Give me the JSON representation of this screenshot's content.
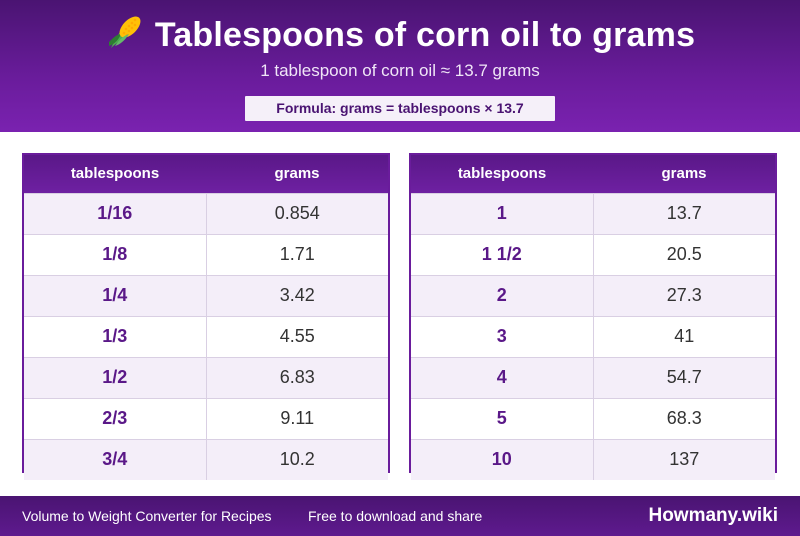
{
  "header": {
    "title": "Tablespoons of corn oil to grams",
    "subtitle": "1 tablespoon of corn oil ≈ 13.7 grams",
    "formula": "Formula: grams = tablespoons × 13.7",
    "icon": "corn-icon"
  },
  "tables": [
    {
      "headers": [
        "tablespoons",
        "grams"
      ],
      "rows": [
        [
          "1/16",
          "0.854"
        ],
        [
          "1/8",
          "1.71"
        ],
        [
          "1/4",
          "3.42"
        ],
        [
          "1/3",
          "4.55"
        ],
        [
          "1/2",
          "6.83"
        ],
        [
          "2/3",
          "9.11"
        ],
        [
          "3/4",
          "10.2"
        ]
      ]
    },
    {
      "headers": [
        "tablespoons",
        "grams"
      ],
      "rows": [
        [
          "1",
          "13.7"
        ],
        [
          "1 1/2",
          "20.5"
        ],
        [
          "2",
          "27.3"
        ],
        [
          "3",
          "41"
        ],
        [
          "4",
          "54.7"
        ],
        [
          "5",
          "68.3"
        ],
        [
          "10",
          "137"
        ]
      ]
    }
  ],
  "footer": {
    "left": "Volume to Weight Converter for Recipes",
    "middle": "Free to download and share",
    "brand": "Howmany.wiki"
  },
  "colors": {
    "primary": "#6a1c9c",
    "dark": "#4a1472",
    "row_alt": "#f4eef9"
  }
}
